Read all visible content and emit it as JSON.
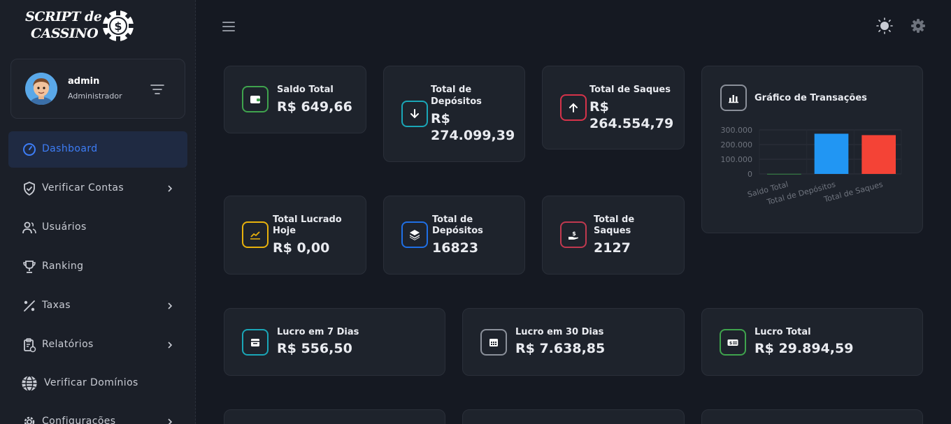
{
  "brand": {
    "line1": "SCRIPT de",
    "line2": "CASSINO",
    "chip_symbol": "$"
  },
  "user": {
    "name": "admin",
    "role": "Administrador"
  },
  "nav": [
    {
      "label": "Dashboard",
      "icon": "dashboard-gauge-icon",
      "active": true,
      "has_submenu": false
    },
    {
      "label": "Verificar Contas",
      "icon": "shield-check-icon",
      "active": false,
      "has_submenu": true
    },
    {
      "label": "Usuários",
      "icon": "users-icon",
      "active": false,
      "has_submenu": false
    },
    {
      "label": "Ranking",
      "icon": "trophy-icon",
      "active": false,
      "has_submenu": false
    },
    {
      "label": "Taxas",
      "icon": "percent-icon",
      "active": false,
      "has_submenu": true
    },
    {
      "label": "Relatórios",
      "icon": "report-clipboard-icon",
      "active": false,
      "has_submenu": true
    },
    {
      "label": "Verificar Domínios",
      "icon": "globe-icon",
      "active": false,
      "has_submenu": false
    },
    {
      "label": "Configurações",
      "icon": "settings-gear-icon",
      "active": false,
      "has_submenu": true
    }
  ],
  "cards": {
    "saldo_total": {
      "title": "Saldo Total",
      "value": "R$ 649,66",
      "color": "#3fa34d"
    },
    "total_depositos": {
      "title_1": "Total de",
      "title_2": "Depósitos",
      "value_1": "R$",
      "value_2": "274.099,39",
      "color": "#1aa6b7"
    },
    "total_saques": {
      "title": "Total de Saques",
      "value_1": "R$",
      "value_2": "264.554,79",
      "color": "#d6334a"
    },
    "lucro_hoje": {
      "title_1": "Total Lucrado",
      "title_2": "Hoje",
      "value": "R$ 0,00",
      "color": "#e8b10c"
    },
    "qtd_depositos": {
      "title_1": "Total de",
      "title_2": "Depósitos",
      "value": "16823",
      "color": "#1f6fe5"
    },
    "qtd_saques": {
      "title_1": "Total de",
      "title_2": "Saques",
      "value": "2127",
      "color": "#c0394f"
    },
    "lucro_7": {
      "title": "Lucro em 7 Dias",
      "value": "R$ 556,50",
      "color": "#1aa6b7"
    },
    "lucro_30": {
      "title": "Lucro em 30 Dias",
      "value": "R$ 7.638,85",
      "color": "#8b909a"
    },
    "lucro_total": {
      "title": "Lucro Total",
      "value": "R$ 29.894,59",
      "color": "#3fa34d"
    }
  },
  "chart_title": "Gráfico de Transações",
  "chart_data": {
    "type": "bar",
    "categories": [
      "Saldo Total",
      "Total de Depósitos",
      "Total de Saques"
    ],
    "values": [
      649.66,
      274099.39,
      264554.79
    ],
    "colors": [
      "#3fa34d",
      "#2196f3",
      "#f44336"
    ],
    "yticks": [
      "300.000",
      "200.000",
      "100.000",
      "0"
    ],
    "ylim": [
      0,
      300000
    ],
    "grid": true,
    "legend": "none"
  }
}
